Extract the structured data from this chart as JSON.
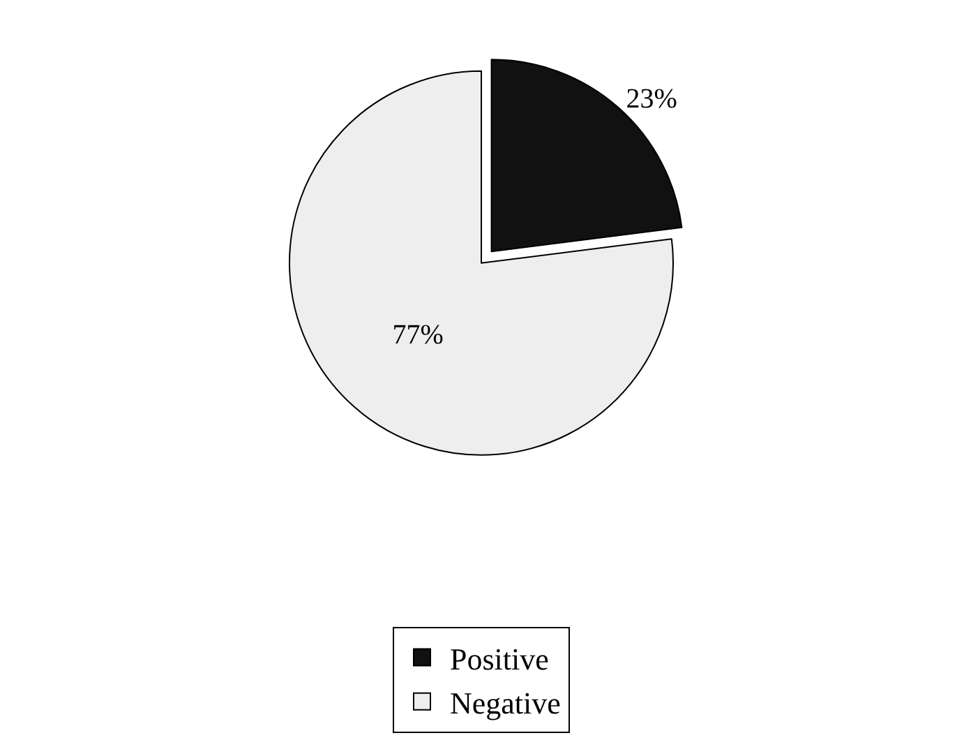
{
  "chart_data": {
    "type": "pie",
    "categories": [
      "Positive",
      "Negative"
    ],
    "values": [
      23,
      77
    ],
    "colors": [
      "#111111",
      "#eeeeee"
    ],
    "value_labels": [
      "23%",
      "77%"
    ],
    "legend": "bottom"
  }
}
